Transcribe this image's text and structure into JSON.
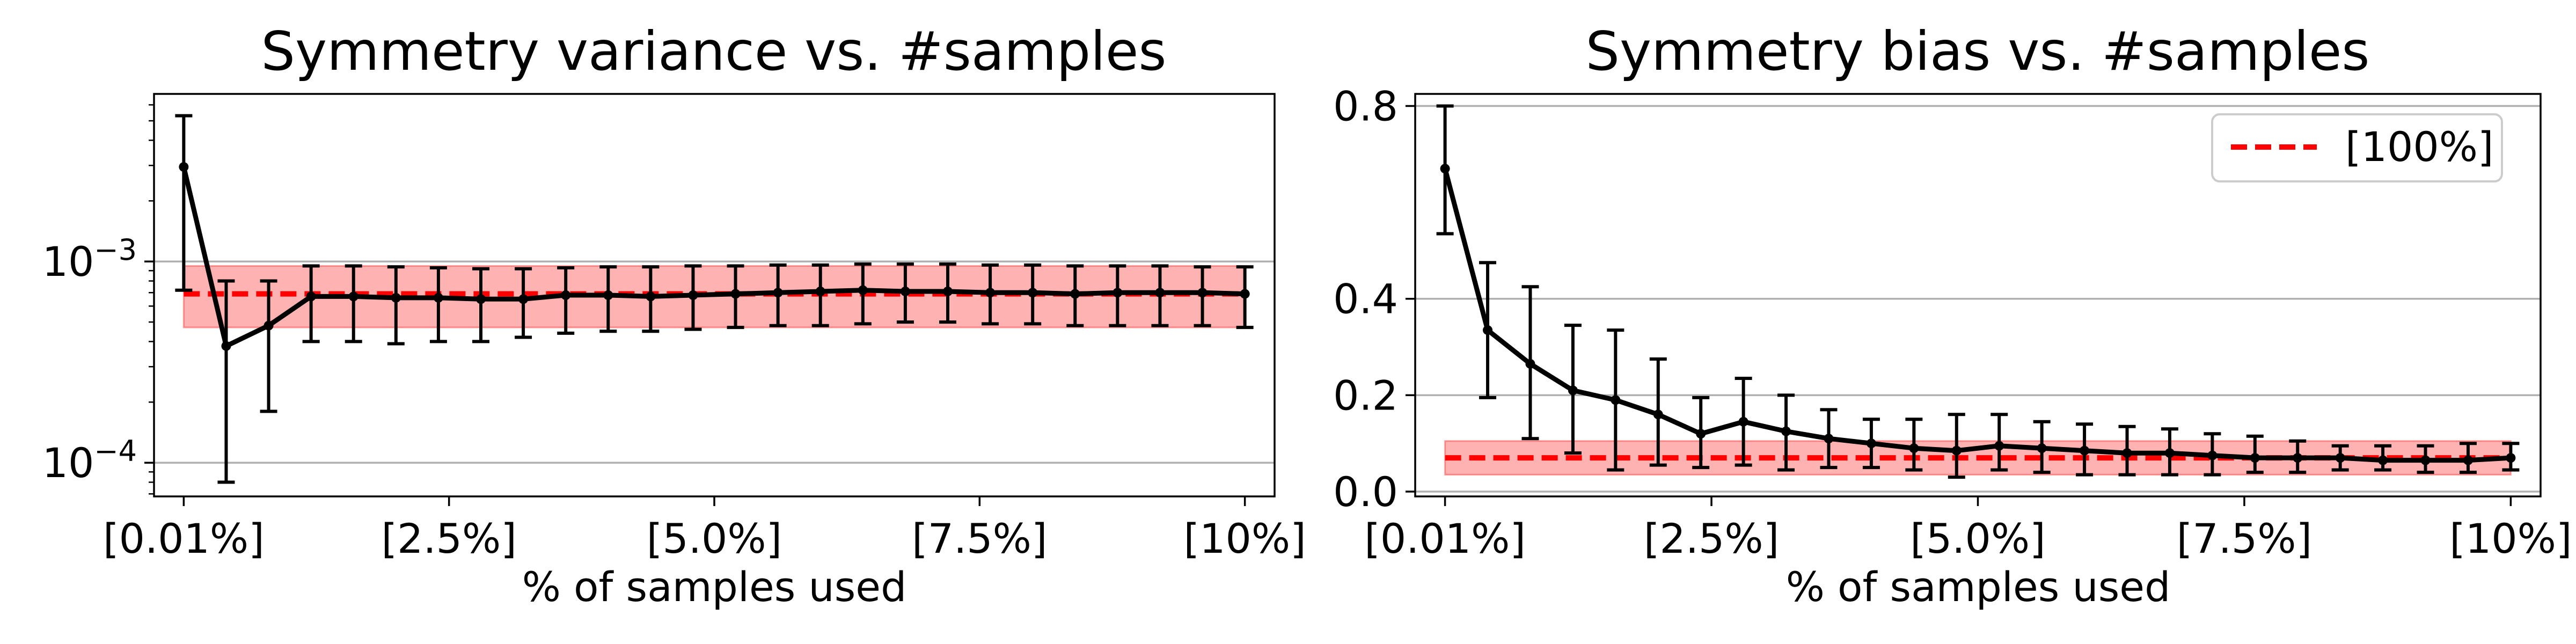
{
  "colors": {
    "mean_line": "#000000",
    "reference_line": "#ff0000",
    "reference_band": "#ff0000",
    "grid": "#b0b0b0"
  },
  "chart_data": [
    {
      "type": "line",
      "title": "Symmetry variance vs. #samples",
      "xlabel": "% of samples used",
      "ylabel": "",
      "yscale": "log",
      "ylim": [
        6.8e-05,
        0.0068
      ],
      "xlim": [
        -0.7,
        25.7
      ],
      "grid": "y",
      "x_ticks": [
        0,
        6.25,
        12.5,
        18.75,
        25
      ],
      "x_tick_labels": [
        "[0.01%]",
        "[2.5%]",
        "[5.0%]",
        "[7.5%]",
        "[10%]"
      ],
      "y_ticks": [
        0.001,
        0.0001
      ],
      "y_tick_labels": [
        {
          "base": "10",
          "exp": "−3"
        },
        {
          "base": "10",
          "exp": "−4"
        }
      ],
      "series": [
        {
          "name": "mean",
          "x": [
            0,
            1,
            2,
            3,
            4,
            5,
            6,
            7,
            8,
            9,
            10,
            11,
            12,
            13,
            14,
            15,
            16,
            17,
            18,
            19,
            20,
            21,
            22,
            23,
            24,
            25
          ],
          "values": [
            0.00295,
            0.00038,
            0.00048,
            0.00067,
            0.00067,
            0.00066,
            0.00066,
            0.00065,
            0.00065,
            0.00068,
            0.00068,
            0.00067,
            0.00068,
            0.00069,
            0.0007,
            0.00071,
            0.00072,
            0.00071,
            0.00071,
            0.0007,
            0.0007,
            0.00069,
            0.0007,
            0.0007,
            0.0007,
            0.00069
          ],
          "error_low": [
            0.00072,
            8e-05,
            0.00018,
            0.0004,
            0.0004,
            0.00039,
            0.0004,
            0.0004,
            0.00042,
            0.00044,
            0.00045,
            0.00045,
            0.00046,
            0.00047,
            0.00048,
            0.00048,
            0.00049,
            0.0005,
            0.0005,
            0.00049,
            0.00049,
            0.00048,
            0.00048,
            0.00048,
            0.00048,
            0.00047
          ],
          "error_high": [
            0.0053,
            0.0008,
            0.0008,
            0.00095,
            0.00095,
            0.00094,
            0.00093,
            0.00092,
            0.00092,
            0.00093,
            0.00094,
            0.00094,
            0.00095,
            0.00095,
            0.00096,
            0.00096,
            0.00097,
            0.00097,
            0.00097,
            0.00096,
            0.00096,
            0.00095,
            0.00095,
            0.00095,
            0.00094,
            0.00094
          ]
        }
      ],
      "reference": {
        "value": 0.00069,
        "band_low": 0.00047,
        "band_high": 0.00095
      }
    },
    {
      "type": "line",
      "title": "Symmetry bias vs. #samples",
      "xlabel": "% of samples used",
      "ylabel": "",
      "yscale": "linear",
      "ylim": [
        -0.01,
        0.825
      ],
      "xlim": [
        -0.7,
        25.7
      ],
      "grid": "y",
      "legend": {
        "label": "[100%]",
        "position": "top-right"
      },
      "x_ticks": [
        0,
        6.25,
        12.5,
        18.75,
        25
      ],
      "x_tick_labels": [
        "[0.01%]",
        "[2.5%]",
        "[5.0%]",
        "[7.5%]",
        "[10%]"
      ],
      "y_ticks": [
        0.0,
        0.2,
        0.4,
        0.8
      ],
      "y_tick_labels": [
        "0.0",
        "0.2",
        "0.4",
        "0.8"
      ],
      "series": [
        {
          "name": "mean",
          "x": [
            0,
            1,
            2,
            3,
            4,
            5,
            6,
            7,
            8,
            9,
            10,
            11,
            12,
            13,
            14,
            15,
            16,
            17,
            18,
            19,
            20,
            21,
            22,
            23,
            24,
            25
          ],
          "values": [
            0.67,
            0.335,
            0.265,
            0.21,
            0.19,
            0.16,
            0.12,
            0.145,
            0.125,
            0.11,
            0.1,
            0.09,
            0.085,
            0.095,
            0.09,
            0.085,
            0.08,
            0.08,
            0.075,
            0.07,
            0.07,
            0.07,
            0.065,
            0.065,
            0.065,
            0.07
          ],
          "error_low": [
            0.535,
            0.195,
            0.11,
            0.08,
            0.045,
            0.055,
            0.05,
            0.055,
            0.045,
            0.05,
            0.05,
            0.045,
            0.03,
            0.045,
            0.04,
            0.035,
            0.035,
            0.035,
            0.035,
            0.04,
            0.04,
            0.045,
            0.045,
            0.04,
            0.04,
            0.045
          ],
          "error_high": [
            0.8,
            0.475,
            0.425,
            0.345,
            0.335,
            0.275,
            0.195,
            0.235,
            0.2,
            0.17,
            0.15,
            0.15,
            0.16,
            0.16,
            0.145,
            0.14,
            0.135,
            0.13,
            0.12,
            0.115,
            0.105,
            0.095,
            0.095,
            0.095,
            0.1,
            0.1
          ]
        }
      ],
      "reference": {
        "value": 0.07,
        "band_low": 0.035,
        "band_high": 0.105
      }
    }
  ]
}
